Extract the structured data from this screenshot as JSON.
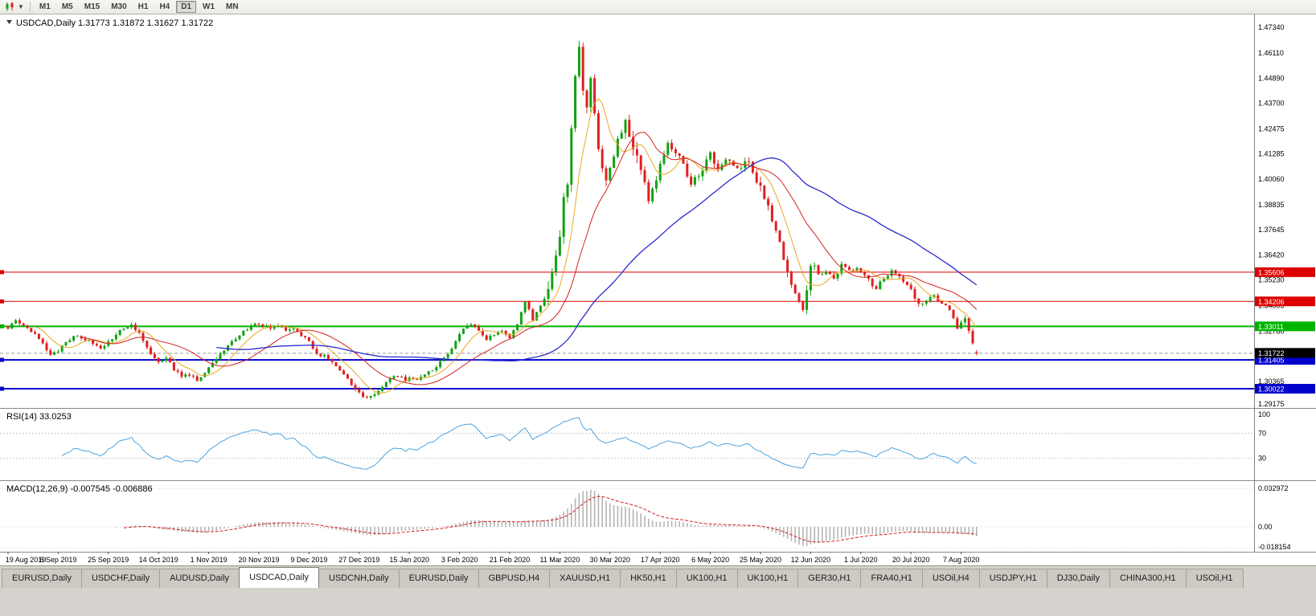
{
  "toolbar": {
    "timeframes": [
      "M1",
      "M5",
      "M15",
      "M30",
      "H1",
      "H4",
      "D1",
      "W1",
      "MN"
    ],
    "active_timeframe": "D1"
  },
  "chart_header": {
    "symbol_label": "USDCAD,Daily",
    "open": "1.31773",
    "high": "1.31872",
    "low": "1.31627",
    "close": "1.31722"
  },
  "tabs": {
    "labels": [
      "EURUSD,Daily",
      "USDCHF,Daily",
      "AUDUSD,Daily",
      "USDCAD,Daily",
      "USDCNH,Daily",
      "EURUSD,Daily",
      "GBPUSD,H4",
      "XAUUSD,H1",
      "HK50,H1",
      "UK100,H1",
      "UK100,H1",
      "GER30,H1",
      "FRA40,H1",
      "USOil,H4",
      "USDJPY,H1",
      "DJ30,Daily",
      "CHINA300,H1",
      "USOil,H1"
    ],
    "active_index": 3
  },
  "chart_data": {
    "type": "candlestick",
    "symbol": "USDCAD",
    "timeframe": "Daily",
    "ylim": [
      1.291,
      1.4795
    ],
    "num_candles": 252,
    "bar_start_x": 10,
    "bar_spacing": 4.8,
    "seed": 20,
    "colors": {
      "up": "#12a112",
      "down": "#e01f1f"
    },
    "close_anchors": [
      [
        0,
        1.329
      ],
      [
        2,
        1.333
      ],
      [
        4,
        1.3305
      ],
      [
        7,
        1.3265
      ],
      [
        9,
        1.322
      ],
      [
        11,
        1.3165
      ],
      [
        13,
        1.318
      ],
      [
        15,
        1.3225
      ],
      [
        18,
        1.3255
      ],
      [
        21,
        1.3235
      ],
      [
        24,
        1.3195
      ],
      [
        26,
        1.323
      ],
      [
        28,
        1.326
      ],
      [
        30,
        1.329
      ],
      [
        32,
        1.331
      ],
      [
        34,
        1.327
      ],
      [
        36,
        1.32
      ],
      [
        39,
        1.313
      ],
      [
        41,
        1.315
      ],
      [
        43,
        1.309
      ],
      [
        45,
        1.306
      ],
      [
        47,
        1.3065
      ],
      [
        49,
        1.304
      ],
      [
        52,
        1.3105
      ],
      [
        55,
        1.317
      ],
      [
        58,
        1.323
      ],
      [
        61,
        1.328
      ],
      [
        63,
        1.3305
      ],
      [
        65,
        1.331
      ],
      [
        68,
        1.329
      ],
      [
        70,
        1.3305
      ],
      [
        72,
        1.328
      ],
      [
        74,
        1.329
      ],
      [
        76,
        1.3255
      ],
      [
        78,
        1.323
      ],
      [
        80,
        1.317
      ],
      [
        82,
        1.3165
      ],
      [
        84,
        1.313
      ],
      [
        86,
        1.309
      ],
      [
        88,
        1.305
      ],
      [
        90,
        1.3
      ],
      [
        91,
        1.2985
      ],
      [
        93,
        1.296
      ],
      [
        95,
        1.2975
      ],
      [
        97,
        1.301
      ],
      [
        99,
        1.305
      ],
      [
        101,
        1.306
      ],
      [
        103,
        1.304
      ],
      [
        104,
        1.3055
      ],
      [
        106,
        1.3045
      ],
      [
        108,
        1.307
      ],
      [
        110,
        1.309
      ],
      [
        113,
        1.315
      ],
      [
        116,
        1.323
      ],
      [
        118,
        1.329
      ],
      [
        120,
        1.331
      ],
      [
        122,
        1.328
      ],
      [
        124,
        1.3235
      ],
      [
        126,
        1.326
      ],
      [
        128,
        1.328
      ],
      [
        130,
        1.3245
      ],
      [
        132,
        1.331
      ],
      [
        134,
        1.342
      ],
      [
        136,
        1.333
      ],
      [
        138,
        1.34
      ],
      [
        140,
        1.348
      ],
      [
        141,
        1.356
      ],
      [
        142,
        1.364
      ],
      [
        143,
        1.373
      ],
      [
        144,
        1.392
      ],
      [
        145,
        1.398
      ],
      [
        146,
        1.425
      ],
      [
        147,
        1.45
      ],
      [
        148,
        1.464
      ],
      [
        149,
        1.443
      ],
      [
        150,
        1.435
      ],
      [
        151,
        1.449
      ],
      [
        153,
        1.415
      ],
      [
        155,
        1.4
      ],
      [
        156,
        1.406
      ],
      [
        158,
        1.42
      ],
      [
        160,
        1.429
      ],
      [
        162,
        1.415
      ],
      [
        164,
        1.405
      ],
      [
        166,
        1.39
      ],
      [
        168,
        1.4
      ],
      [
        169,
        1.408
      ],
      [
        171,
        1.418
      ],
      [
        173,
        1.413
      ],
      [
        175,
        1.408
      ],
      [
        177,
        1.398
      ],
      [
        179,
        1.402
      ],
      [
        181,
        1.41
      ],
      [
        182,
        1.4135
      ],
      [
        184,
        1.405
      ],
      [
        186,
        1.41
      ],
      [
        188,
        1.407
      ],
      [
        190,
        1.406
      ],
      [
        192,
        1.409
      ],
      [
        194,
        1.399
      ],
      [
        195,
        1.3975
      ],
      [
        197,
        1.388
      ],
      [
        199,
        1.376
      ],
      [
        201,
        1.362
      ],
      [
        203,
        1.35
      ],
      [
        205,
        1.342
      ],
      [
        206,
        1.338
      ],
      [
        208,
        1.359
      ],
      [
        210,
        1.355
      ],
      [
        212,
        1.356
      ],
      [
        214,
        1.353
      ],
      [
        216,
        1.36
      ],
      [
        218,
        1.357
      ],
      [
        220,
        1.358
      ],
      [
        221,
        1.356
      ],
      [
        223,
        1.353
      ],
      [
        225,
        1.348
      ],
      [
        227,
        1.353
      ],
      [
        229,
        1.357
      ],
      [
        231,
        1.354
      ],
      [
        233,
        1.35
      ],
      [
        234,
        1.348
      ],
      [
        236,
        1.341
      ],
      [
        238,
        1.342
      ],
      [
        240,
        1.345
      ],
      [
        242,
        1.341
      ],
      [
        244,
        1.338
      ],
      [
        245,
        1.334
      ],
      [
        246,
        1.329
      ],
      [
        247,
        1.332
      ],
      [
        248,
        1.334
      ],
      [
        249,
        1.328
      ],
      [
        250,
        1.322
      ],
      [
        251,
        1.31722
      ]
    ],
    "volatility_zones": [
      [
        0,
        139,
        0.0016
      ],
      [
        140,
        164,
        0.005
      ],
      [
        165,
        194,
        0.0028
      ],
      [
        195,
        209,
        0.0038
      ],
      [
        210,
        251,
        0.002
      ]
    ],
    "peak": {
      "index": 148,
      "high": 1.4669
    },
    "last_candle": {
      "open": 1.31773,
      "high": 1.31872,
      "low": 1.31627,
      "close": 1.31722
    },
    "moving_averages": [
      {
        "period": 8,
        "color": "#e8a825",
        "width": 1
      },
      {
        "period": 20,
        "color": "#d42020",
        "width": 1
      },
      {
        "period": 55,
        "color": "#2b2bd0",
        "width": 1.3
      }
    ],
    "levels": [
      {
        "value": 1.35606,
        "label": "1.35606",
        "color": "#dd0000",
        "width": 1
      },
      {
        "value": 1.34206,
        "label": "1.34206",
        "color": "#dd0000",
        "width": 1
      },
      {
        "value": 1.33011,
        "label": "1.33011",
        "color": "#00b400",
        "width": 2
      },
      {
        "value": 1.31405,
        "label": "1.31405",
        "color": "#0000cc",
        "width": 2
      },
      {
        "value": 1.30022,
        "label": "1.30022",
        "color": "#0000cc",
        "width": 2
      }
    ],
    "current_price": {
      "value": 1.31722,
      "label": "1.31722"
    },
    "price_axis_labels": [
      "1.47340",
      "1.46110",
      "1.44890",
      "1.43700",
      "1.42475",
      "1.41285",
      "1.40060",
      "1.38835",
      "1.37645",
      "1.36420",
      "1.35230",
      "1.34005",
      "1.32780",
      "1.31590",
      "1.30365",
      "1.29175"
    ],
    "date_axis": [
      [
        "19 Aug 2019",
        0
      ],
      [
        "6 Sep 2019",
        13
      ],
      [
        "25 Sep 2019",
        26
      ],
      [
        "14 Oct 2019",
        39
      ],
      [
        "1 Nov 2019",
        52
      ],
      [
        "20 Nov 2019",
        65
      ],
      [
        "9 Dec 2019",
        78
      ],
      [
        "27 Dec 2019",
        91
      ],
      [
        "15 Jan 2020",
        104
      ],
      [
        "3 Feb 2020",
        117
      ],
      [
        "21 Feb 2020",
        130
      ],
      [
        "11 Mar 2020",
        143
      ],
      [
        "30 Mar 2020",
        156
      ],
      [
        "17 Apr 2020",
        169
      ],
      [
        "6 May 2020",
        182
      ],
      [
        "25 May 2020",
        195
      ],
      [
        "12 Jun 2020",
        208
      ],
      [
        "1 Jul 2020",
        221
      ],
      [
        "20 Jul 2020",
        234
      ],
      [
        "7 Aug 2020",
        247
      ]
    ],
    "rsi": {
      "label": "RSI(14)",
      "value_display": "33.0253",
      "period": 14,
      "levels": [
        70,
        30
      ],
      "axis_labels": [
        "100",
        "70",
        "30"
      ],
      "color": "#4aa3e3"
    },
    "macd": {
      "label": "MACD(12,26,9)",
      "value_display": "-0.007545 -0.006886",
      "fast": 12,
      "slow": 26,
      "signal": 9,
      "axis_labels": [
        {
          "text": "0.032972",
          "value": 0.032972
        },
        {
          "text": "0.00",
          "value": 0
        },
        {
          "text": "-0.018154",
          "value": -0.018154
        }
      ],
      "hist_color": "#b4b4b4",
      "signal_color": "#d42020"
    }
  }
}
